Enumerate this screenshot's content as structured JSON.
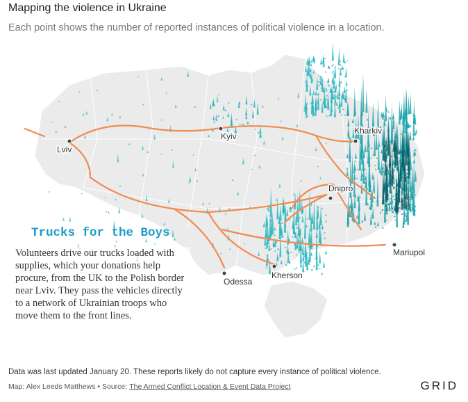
{
  "header": {
    "title": "Mapping the violence in Ukraine",
    "subtitle": "Each point shows the number of reported instances of political violence in a location."
  },
  "cities": [
    {
      "label": "Lviv"
    },
    {
      "label": "Kyiv"
    },
    {
      "label": "Kharkiv"
    },
    {
      "label": "Dnipro"
    },
    {
      "label": "Odessa"
    },
    {
      "label": "Kherson"
    },
    {
      "label": "Mariupol"
    }
  ],
  "callout": {
    "title": "Trucks for the Boys",
    "body": "Volunteers drive our trucks loaded with supplies, which your donations help procure, from the UK to the Polish border near Lviv. They pass the vehicles directly to a network of Ukrainian troops who move them to the front lines."
  },
  "footer": {
    "note": "Data was last updated January 20. These reports likely do not capture every instance of political violence.",
    "credit": "Map: Alex Leeds Matthews • Source:",
    "source_link": "The Armed Conflict Location & Event Data Project",
    "logo": "GRID"
  }
}
